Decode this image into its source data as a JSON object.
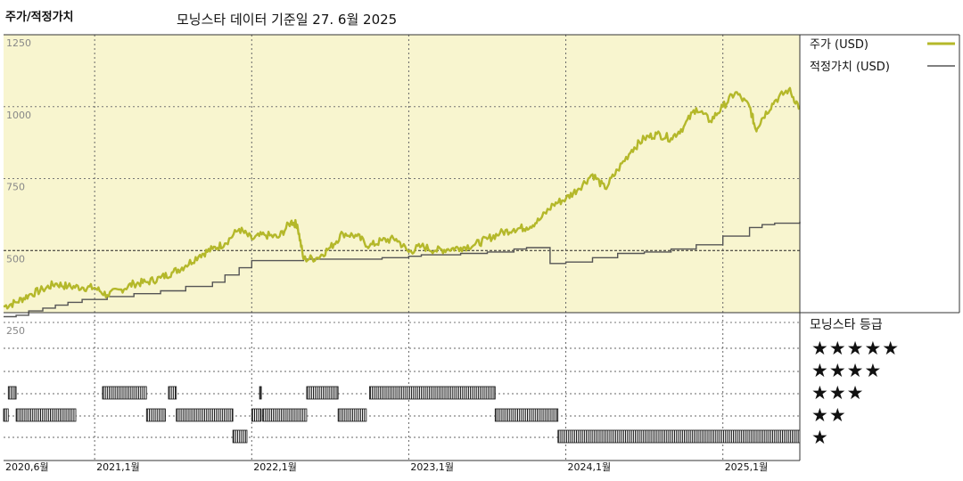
{
  "header": {
    "title": "주가/적정가치",
    "subtitle": "모닝스타 데이터 기준일 27. 6월 2025"
  },
  "chart_data": {
    "type": "line",
    "ylim": [
      250,
      1250
    ],
    "yticks": [
      "250",
      "500",
      "750",
      "1000",
      "1250"
    ],
    "x_tick_labels": [
      "2020,6월",
      "2021,1월",
      "2022,1월",
      "2023,1월",
      "2024,1월",
      "2025,1월"
    ],
    "x_tick_dates": [
      2020.42,
      2021.0,
      2022.0,
      2023.0,
      2024.0,
      2025.0
    ],
    "xlim": [
      2020.42,
      2025.49
    ],
    "legend": {
      "placement": "right",
      "price_label": "주가 (USD)",
      "fair_label": "적정가치 (USD)"
    },
    "colors": {
      "price": "#b4b82a",
      "fair": "#555555",
      "plot_bg": "#f8f5cf"
    },
    "series": [
      {
        "name": "주가 (USD)",
        "points": [
          [
            2020.42,
            305
          ],
          [
            2020.5,
            320
          ],
          [
            2020.58,
            345
          ],
          [
            2020.67,
            365
          ],
          [
            2020.75,
            385
          ],
          [
            2020.83,
            375
          ],
          [
            2020.92,
            372
          ],
          [
            2021.0,
            370
          ],
          [
            2021.08,
            345
          ],
          [
            2021.17,
            365
          ],
          [
            2021.25,
            385
          ],
          [
            2021.33,
            390
          ],
          [
            2021.42,
            405
          ],
          [
            2021.5,
            425
          ],
          [
            2021.58,
            448
          ],
          [
            2021.67,
            485
          ],
          [
            2021.75,
            505
          ],
          [
            2021.83,
            525
          ],
          [
            2021.92,
            575
          ],
          [
            2022.0,
            540
          ],
          [
            2022.08,
            555
          ],
          [
            2022.17,
            545
          ],
          [
            2022.25,
            600
          ],
          [
            2022.29,
            590
          ],
          [
            2022.33,
            470
          ],
          [
            2022.42,
            475
          ],
          [
            2022.5,
            510
          ],
          [
            2022.58,
            560
          ],
          [
            2022.67,
            550
          ],
          [
            2022.75,
            515
          ],
          [
            2022.83,
            535
          ],
          [
            2022.92,
            540
          ],
          [
            2023.0,
            495
          ],
          [
            2023.08,
            515
          ],
          [
            2023.17,
            500
          ],
          [
            2023.25,
            505
          ],
          [
            2023.33,
            510
          ],
          [
            2023.42,
            520
          ],
          [
            2023.5,
            540
          ],
          [
            2023.58,
            560
          ],
          [
            2023.67,
            575
          ],
          [
            2023.75,
            580
          ],
          [
            2023.83,
            605
          ],
          [
            2023.92,
            660
          ],
          [
            2024.0,
            680
          ],
          [
            2024.08,
            715
          ],
          [
            2024.17,
            765
          ],
          [
            2024.25,
            715
          ],
          [
            2024.33,
            780
          ],
          [
            2024.42,
            850
          ],
          [
            2024.5,
            890
          ],
          [
            2024.58,
            905
          ],
          [
            2024.67,
            890
          ],
          [
            2024.75,
            930
          ],
          [
            2024.83,
            995
          ],
          [
            2024.92,
            950
          ],
          [
            2025.0,
            1000
          ],
          [
            2025.08,
            1050
          ],
          [
            2025.17,
            1000
          ],
          [
            2025.21,
            920
          ],
          [
            2025.25,
            960
          ],
          [
            2025.33,
            1020
          ],
          [
            2025.42,
            1060
          ],
          [
            2025.49,
            995
          ]
        ]
      },
      {
        "name": "적정가치 (USD)",
        "points": [
          [
            2020.42,
            270
          ],
          [
            2020.5,
            275
          ],
          [
            2020.58,
            290
          ],
          [
            2020.67,
            300
          ],
          [
            2020.75,
            310
          ],
          [
            2020.83,
            320
          ],
          [
            2020.92,
            330
          ],
          [
            2021.08,
            340
          ],
          [
            2021.25,
            350
          ],
          [
            2021.42,
            360
          ],
          [
            2021.58,
            375
          ],
          [
            2021.75,
            390
          ],
          [
            2021.83,
            415
          ],
          [
            2021.92,
            440
          ],
          [
            2022.0,
            465
          ],
          [
            2022.33,
            470
          ],
          [
            2022.67,
            470
          ],
          [
            2022.83,
            475
          ],
          [
            2023.0,
            480
          ],
          [
            2023.08,
            485
          ],
          [
            2023.33,
            490
          ],
          [
            2023.5,
            495
          ],
          [
            2023.67,
            505
          ],
          [
            2023.75,
            510
          ],
          [
            2023.9,
            455
          ],
          [
            2024.0,
            460
          ],
          [
            2024.17,
            475
          ],
          [
            2024.33,
            490
          ],
          [
            2024.5,
            495
          ],
          [
            2024.67,
            505
          ],
          [
            2024.83,
            520
          ],
          [
            2025.0,
            550
          ],
          [
            2025.17,
            580
          ],
          [
            2025.25,
            590
          ],
          [
            2025.33,
            595
          ],
          [
            2025.49,
            600
          ]
        ]
      }
    ],
    "rating": {
      "label": "모닝스타 등급",
      "star_labels": [
        "★★★★★",
        "★★★★",
        "★★★",
        "★★",
        "★"
      ],
      "periods": [
        {
          "stars": 2,
          "start": 2020.42,
          "end": 2020.45
        },
        {
          "stars": 3,
          "start": 2020.45,
          "end": 2020.5
        },
        {
          "stars": 2,
          "start": 2020.5,
          "end": 2020.88
        },
        {
          "stars": 3,
          "start": 2021.05,
          "end": 2021.33
        },
        {
          "stars": 2,
          "start": 2021.33,
          "end": 2021.45
        },
        {
          "stars": 3,
          "start": 2021.47,
          "end": 2021.52
        },
        {
          "stars": 2,
          "start": 2021.52,
          "end": 2021.88
        },
        {
          "stars": 1,
          "start": 2021.88,
          "end": 2021.97
        },
        {
          "stars": 2,
          "start": 2022.0,
          "end": 2022.06
        },
        {
          "stars": 3,
          "start": 2022.05,
          "end": 2022.06
        },
        {
          "stars": 2,
          "start": 2022.07,
          "end": 2022.35
        },
        {
          "stars": 3,
          "start": 2022.35,
          "end": 2022.55
        },
        {
          "stars": 2,
          "start": 2022.55,
          "end": 2022.73
        },
        {
          "stars": 3,
          "start": 2022.75,
          "end": 2023.55
        },
        {
          "stars": 2,
          "start": 2023.55,
          "end": 2023.95
        },
        {
          "stars": 1,
          "start": 2023.95,
          "end": 2025.49
        }
      ]
    }
  }
}
